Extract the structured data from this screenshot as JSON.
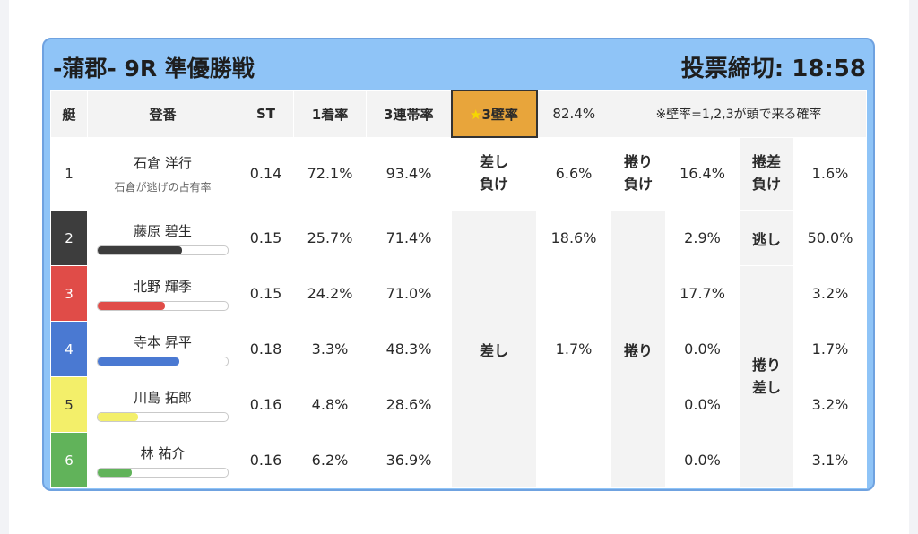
{
  "header": {
    "title": "-蒲郡- 9R 準優勝戦",
    "deadline": "投票締切: 18:58"
  },
  "columns": {
    "lane": "艇",
    "name": "登番",
    "st": "ST",
    "win": "1着率",
    "top3": "3連帯率",
    "wall_star": "★",
    "wall": "3壁率",
    "wall_value": "82.4%",
    "wall_note": "※壁率=1,2,3が頭で来る確率"
  },
  "rows": [
    {
      "lane": "1",
      "name": "石倉 洋行",
      "sub": "石倉が逃げの占有率",
      "st": "0.14",
      "win": "72.1%",
      "top3": "93.4%"
    },
    {
      "lane": "2",
      "name": "藤原 碧生",
      "st": "0.15",
      "win": "25.7%",
      "top3": "71.4%",
      "bar": 0.65,
      "bar_color": "#3d3d3d"
    },
    {
      "lane": "3",
      "name": "北野 輝季",
      "st": "0.15",
      "win": "24.2%",
      "top3": "71.0%",
      "bar": 0.52,
      "bar_color": "#e04c48"
    },
    {
      "lane": "4",
      "name": "寺本 昇平",
      "st": "0.18",
      "win": "3.3%",
      "top3": "48.3%",
      "bar": 0.63,
      "bar_color": "#4a79d2"
    },
    {
      "lane": "5",
      "name": "川島 拓郎",
      "st": "0.16",
      "win": "4.8%",
      "top3": "28.6%",
      "bar": 0.31,
      "bar_color": "#f3ef6a"
    },
    {
      "lane": "6",
      "name": "林 祐介",
      "st": "0.16",
      "win": "6.2%",
      "top3": "36.9%",
      "bar": 0.26,
      "bar_color": "#61b35a"
    }
  ],
  "stats": {
    "sashi_make_l1": "差し",
    "sashi_make_l2": "負け",
    "sashi_make_val": "6.6%",
    "makuri_make_l1": "捲り",
    "makuri_make_l2": "負け",
    "makuri_make_val": "16.4%",
    "makurisashi_make_l1": "捲差",
    "makurisashi_make_l2": "負け",
    "makurisashi_make_val": "1.6%",
    "sashi_label": "差し",
    "sashi_r2": "18.6%",
    "sashi_r4": "1.7%",
    "makuri_label": "捲り",
    "makuri_r2": "2.9%",
    "makuri_r3": "17.7%",
    "makuri_r4": "0.0%",
    "makuri_r5": "0.0%",
    "makuri_r6": "0.0%",
    "nige_label": "逃し",
    "nige_val": "50.0%",
    "makurisashi_l1": "捲り",
    "makurisashi_l2": "差し",
    "ms_r3": "3.2%",
    "ms_r4": "1.7%",
    "ms_r5": "3.2%",
    "ms_r6": "3.1%"
  },
  "colors": {
    "frame": "#8fc4f7",
    "border": "#6fa2e0",
    "wall_header": "#e8a53b"
  }
}
